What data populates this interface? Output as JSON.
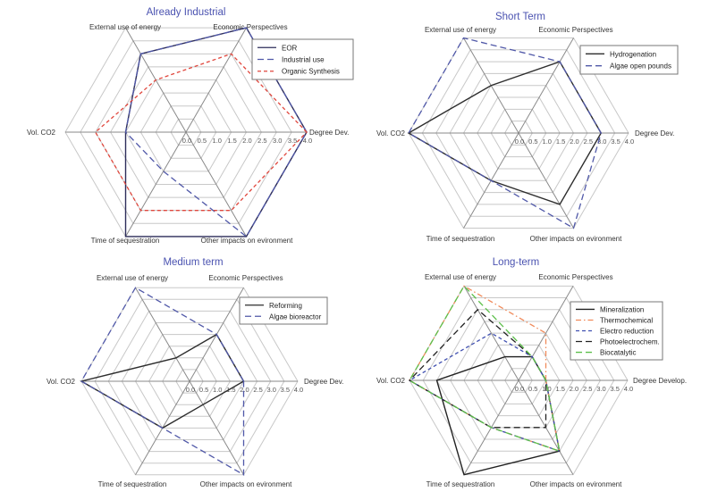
{
  "chart_data": [
    {
      "type": "radar",
      "title": "Already Industrial",
      "axes": [
        "Degree Dev.",
        "Economic Perspectives",
        "External use of energy",
        "Vol. CO2",
        "Time of sequestration",
        "Other impacts on evironment"
      ],
      "range": [
        0,
        4
      ],
      "ticks": [
        "0.0",
        "0.5",
        "1.0",
        "1.5",
        "2.0",
        "2.5",
        "3.0",
        "3.5",
        "4.0"
      ],
      "series": [
        {
          "name": "EOR",
          "values": [
            4,
            4,
            3,
            2,
            4,
            4
          ],
          "color": "#2d2d5a",
          "dash": "solid"
        },
        {
          "name": "Industrial use",
          "values": [
            4,
            4,
            3,
            2,
            1.5,
            4
          ],
          "color": "#5058a8",
          "dash": "long"
        },
        {
          "name": "Organic Synthesis",
          "values": [
            4,
            3,
            2,
            3,
            3,
            3
          ],
          "color": "#e0463c",
          "dash": "short"
        }
      ]
    },
    {
      "type": "radar",
      "title": "Short Term",
      "axes": [
        "Degree Dev.",
        "Economic Perspectives",
        "External use of energy",
        "Vol. CO2",
        "Time of sequestration",
        "Other impacts on evironment"
      ],
      "range": [
        0,
        4
      ],
      "ticks": [
        "0.0",
        "0.5",
        "1.0",
        "1.5",
        "2.0",
        "2.5",
        "3.0",
        "3.5",
        "4.0"
      ],
      "series": [
        {
          "name": "Hydrogenation",
          "values": [
            3,
            3,
            2,
            4,
            2,
            3
          ],
          "color": "#2d2d2d",
          "dash": "solid"
        },
        {
          "name": "Algae open pounds",
          "values": [
            3,
            3,
            4,
            4,
            2,
            4
          ],
          "color": "#5058a8",
          "dash": "long"
        }
      ]
    },
    {
      "type": "radar",
      "title": "Medium term",
      "axes": [
        "Degree Dev.",
        "Economic Perspectives",
        "External use of energy",
        "Vol. CO2",
        "Time of sequestration",
        "Other impacts on evironment"
      ],
      "range": [
        0,
        4
      ],
      "ticks": [
        "0.0",
        "0.5",
        "1.0",
        "1.5",
        "2.0",
        "2.5",
        "3.0",
        "3.5",
        "4.0"
      ],
      "series": [
        {
          "name": "Reforming",
          "values": [
            2,
            2,
            1,
            4,
            2,
            1
          ],
          "color": "#2d2d2d",
          "dash": "solid"
        },
        {
          "name": "Algae bioreactor",
          "values": [
            2,
            2,
            4,
            4,
            2,
            4
          ],
          "color": "#5058a8",
          "dash": "long"
        }
      ]
    },
    {
      "type": "radar",
      "title": "Long-term",
      "axes": [
        "Degree Develop.",
        "Economic Perspectives",
        "External use of energy",
        "Vol. CO2",
        "Time of sequestration",
        "Other impacts on evironment"
      ],
      "range": [
        0,
        4
      ],
      "ticks": [
        "0.0",
        "0.5",
        "1.0",
        "1.5",
        "2.0",
        "2.5",
        "3.0",
        "3.5",
        "4.0"
      ],
      "series": [
        {
          "name": "Mineralization",
          "values": [
            1,
            1,
            1,
            3,
            4,
            3
          ],
          "color": "#222222",
          "dash": "solid"
        },
        {
          "name": "Thermochemical",
          "values": [
            1,
            2,
            4,
            4,
            2,
            3
          ],
          "color": "#f08a5a",
          "dash": "dashdot"
        },
        {
          "name": "Electro reduction",
          "values": [
            1,
            1,
            2,
            4,
            2,
            3
          ],
          "color": "#4050b0",
          "dash": "short"
        },
        {
          "name": "Photoelectrochem.",
          "values": [
            1,
            1,
            3,
            4,
            2,
            2
          ],
          "color": "#222222",
          "dash": "long"
        },
        {
          "name": "Biocatalytic",
          "values": [
            1,
            1,
            4,
            4,
            2,
            3
          ],
          "color": "#5cbf4a",
          "dash": "long"
        }
      ]
    }
  ]
}
